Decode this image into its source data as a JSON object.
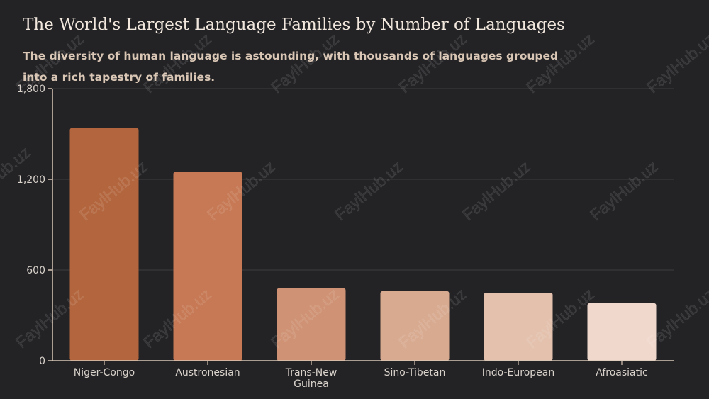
{
  "header": {
    "title": "The World's Largest Language Families by Number of Languages",
    "subtitle": "The diversity of human language is astounding, with thousands of languages grouped into a rich tapestry of families."
  },
  "watermark": "FaylHub.uz",
  "colors": {
    "background": "#232326",
    "grid": "#3c3c40",
    "axis": "#d8c7b6",
    "tick_text": "#d9d2cb",
    "bars": [
      "#b3663e",
      "#c67954",
      "#cf9274",
      "#d8aa90",
      "#e3c1ad",
      "#f1d8cd"
    ]
  },
  "chart_data": {
    "type": "bar",
    "title": "The World's Largest Language Families by Number of Languages",
    "subtitle": "The diversity of human language is astounding, with thousands of languages grouped into a rich tapestry of families.",
    "xlabel": "",
    "ylabel": "",
    "categories": [
      "Niger-Congo",
      "Austronesian",
      "Trans-New Guinea",
      "Sino-Tibetan",
      "Indo-European",
      "Afroasiatic"
    ],
    "category_lines": [
      [
        "Niger-Congo"
      ],
      [
        "Austronesian"
      ],
      [
        "Trans-New",
        "Guinea"
      ],
      [
        "Sino-Tibetan"
      ],
      [
        "Indo-European"
      ],
      [
        "Afroasiatic"
      ]
    ],
    "values": [
      1540,
      1250,
      480,
      460,
      450,
      380
    ],
    "ylim": [
      0,
      1800
    ],
    "yticks": [
      0,
      600,
      1200,
      1800
    ],
    "ytick_labels": [
      "0",
      "600",
      "1,200",
      "1,800"
    ],
    "grid": true,
    "legend": "none"
  }
}
